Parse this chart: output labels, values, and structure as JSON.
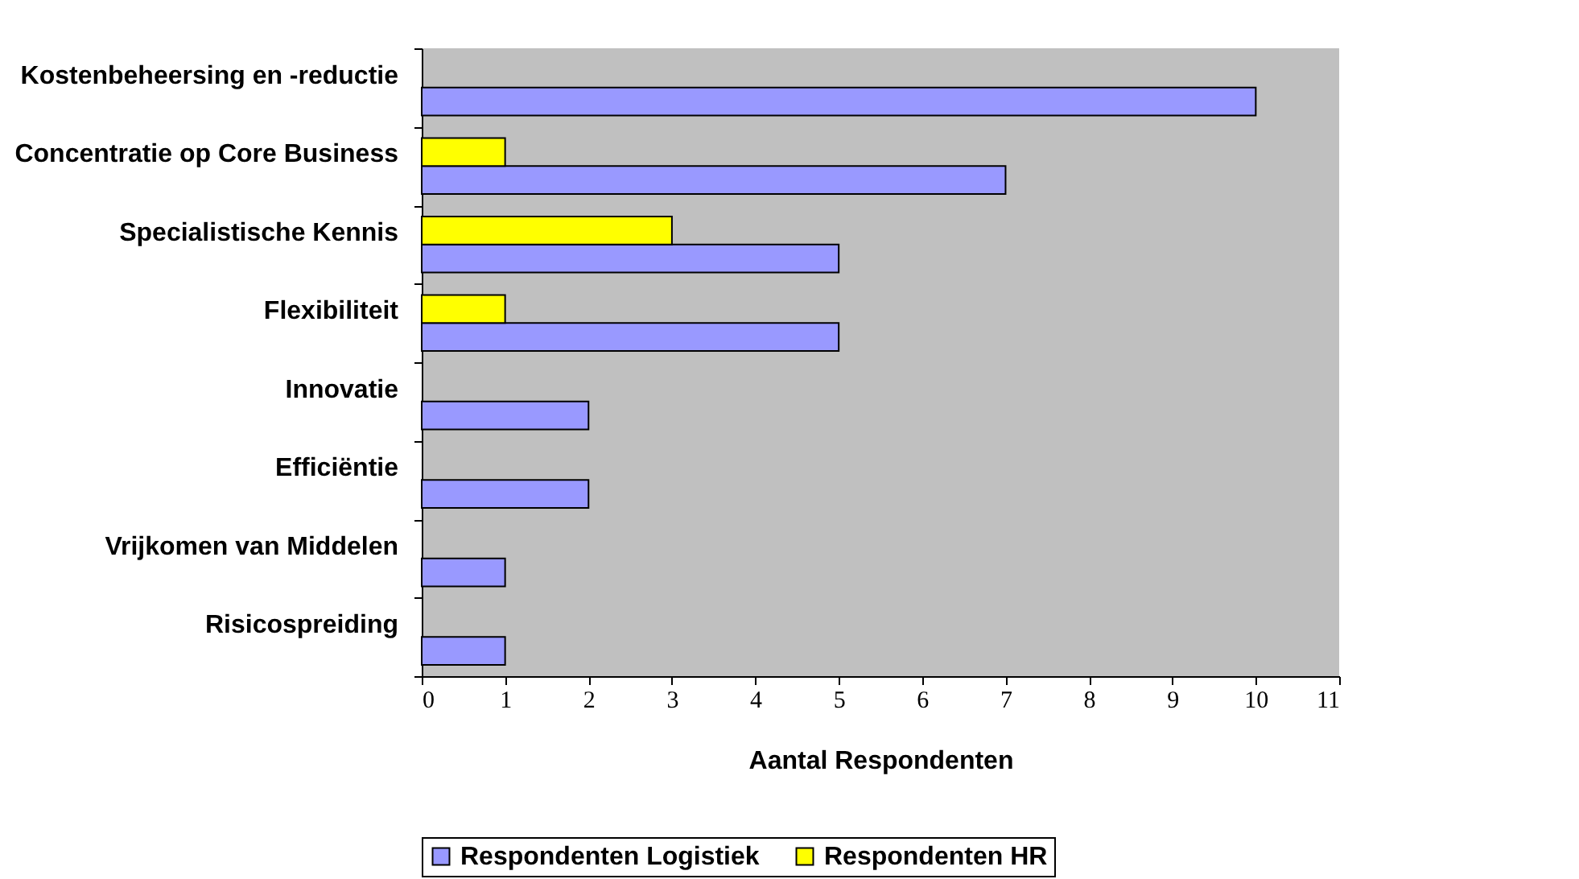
{
  "chart_data": {
    "type": "bar",
    "orientation": "horizontal",
    "xlabel": "Aantal Respondenten",
    "categories": [
      "Kostenbeheersing en -reductie",
      "Concentratie op Core Business",
      "Specialistische Kennis",
      "Flexibiliteit",
      "Innovatie",
      "Efficiëntie",
      "Vrijkomen van Middelen",
      "Risicospreiding"
    ],
    "series": [
      {
        "name": "Respondenten Logistiek",
        "color": "#9999ff",
        "values": [
          10,
          7,
          5,
          5,
          2,
          2,
          1,
          1
        ]
      },
      {
        "name": "Respondenten HR",
        "color": "#ffff00",
        "values": [
          null,
          1,
          3,
          1,
          null,
          null,
          null,
          null
        ]
      }
    ],
    "xlim": [
      0,
      11
    ],
    "xticks": [
      0,
      1,
      2,
      3,
      4,
      5,
      6,
      7,
      8,
      9,
      10,
      11
    ],
    "grid": false,
    "legend": "bottom"
  }
}
